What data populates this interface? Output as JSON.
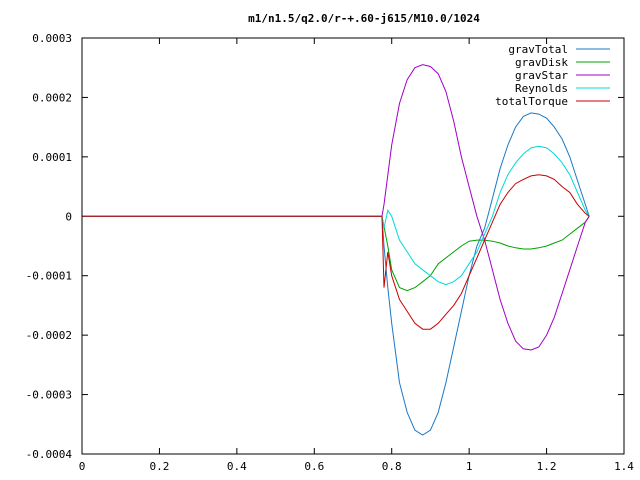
{
  "chart_data": {
    "type": "line",
    "title": "m1/n1.5/q2.0/r-+.60-j615/M10.0/1024",
    "xlabel": "",
    "ylabel": "",
    "xlim": [
      0,
      1.4
    ],
    "ylim": [
      -0.0004,
      0.0003
    ],
    "x_ticks": [
      "0",
      "0.2",
      "0.4",
      "0.6",
      "0.8",
      "1",
      "1.2",
      "1.4"
    ],
    "y_ticks": [
      "0.0003",
      "0.0002",
      "0.0001",
      "0",
      "-0.0001",
      "-0.0002",
      "-0.0003",
      "-0.0004"
    ],
    "legend_position": "top-right",
    "grid": false,
    "series": [
      {
        "name": "gravTotal",
        "color": "#1a78c8",
        "points": [
          [
            0,
            0
          ],
          [
            0.775,
            0
          ],
          [
            0.78,
            -5e-05
          ],
          [
            0.79,
            -0.00012
          ],
          [
            0.8,
            -0.00018
          ],
          [
            0.82,
            -0.00028
          ],
          [
            0.84,
            -0.00033
          ],
          [
            0.86,
            -0.00036
          ],
          [
            0.88,
            -0.000368
          ],
          [
            0.9,
            -0.00036
          ],
          [
            0.92,
            -0.00033
          ],
          [
            0.94,
            -0.00028
          ],
          [
            0.96,
            -0.00022
          ],
          [
            0.98,
            -0.00016
          ],
          [
            1.0,
            -0.0001
          ],
          [
            1.02,
            -5e-05
          ],
          [
            1.04,
            -2e-05
          ],
          [
            1.06,
            3e-05
          ],
          [
            1.08,
            8e-05
          ],
          [
            1.1,
            0.00012
          ],
          [
            1.12,
            0.00015
          ],
          [
            1.14,
            0.000168
          ],
          [
            1.16,
            0.000174
          ],
          [
            1.18,
            0.000172
          ],
          [
            1.2,
            0.000165
          ],
          [
            1.22,
            0.00015
          ],
          [
            1.24,
            0.00013
          ],
          [
            1.26,
            0.0001
          ],
          [
            1.28,
            6e-05
          ],
          [
            1.3,
            2e-05
          ],
          [
            1.31,
            0
          ]
        ]
      },
      {
        "name": "gravDisk",
        "color": "#00a000",
        "points": [
          [
            0,
            0
          ],
          [
            0.775,
            0
          ],
          [
            0.79,
            -5e-05
          ],
          [
            0.8,
            -9e-05
          ],
          [
            0.82,
            -0.00012
          ],
          [
            0.84,
            -0.000125
          ],
          [
            0.86,
            -0.00012
          ],
          [
            0.88,
            -0.00011
          ],
          [
            0.9,
            -0.0001
          ],
          [
            0.92,
            -8e-05
          ],
          [
            0.94,
            -7e-05
          ],
          [
            0.96,
            -6e-05
          ],
          [
            0.98,
            -5e-05
          ],
          [
            1.0,
            -4.2e-05
          ],
          [
            1.02,
            -4e-05
          ],
          [
            1.04,
            -4e-05
          ],
          [
            1.06,
            -4.2e-05
          ],
          [
            1.08,
            -4.5e-05
          ],
          [
            1.1,
            -5e-05
          ],
          [
            1.12,
            -5.3e-05
          ],
          [
            1.14,
            -5.5e-05
          ],
          [
            1.16,
            -5.5e-05
          ],
          [
            1.18,
            -5.3e-05
          ],
          [
            1.2,
            -5e-05
          ],
          [
            1.22,
            -4.5e-05
          ],
          [
            1.24,
            -4e-05
          ],
          [
            1.26,
            -3e-05
          ],
          [
            1.28,
            -2e-05
          ],
          [
            1.3,
            -1e-05
          ],
          [
            1.31,
            0
          ]
        ]
      },
      {
        "name": "gravStar",
        "color": "#a000c8",
        "points": [
          [
            0,
            0
          ],
          [
            0.775,
            0
          ],
          [
            0.78,
            2e-05
          ],
          [
            0.8,
            0.00012
          ],
          [
            0.82,
            0.00019
          ],
          [
            0.84,
            0.00023
          ],
          [
            0.86,
            0.00025
          ],
          [
            0.88,
            0.000255
          ],
          [
            0.9,
            0.000252
          ],
          [
            0.92,
            0.00024
          ],
          [
            0.94,
            0.00021
          ],
          [
            0.96,
            0.00016
          ],
          [
            0.98,
            0.0001
          ],
          [
            1.0,
            5e-05
          ],
          [
            1.02,
            0
          ],
          [
            1.04,
            -4e-05
          ],
          [
            1.06,
            -9e-05
          ],
          [
            1.08,
            -0.00014
          ],
          [
            1.1,
            -0.00018
          ],
          [
            1.12,
            -0.00021
          ],
          [
            1.14,
            -0.000223
          ],
          [
            1.16,
            -0.000225
          ],
          [
            1.18,
            -0.00022
          ],
          [
            1.2,
            -0.0002
          ],
          [
            1.22,
            -0.00017
          ],
          [
            1.24,
            -0.00013
          ],
          [
            1.26,
            -9e-05
          ],
          [
            1.28,
            -5e-05
          ],
          [
            1.3,
            -1e-05
          ],
          [
            1.31,
            0
          ]
        ]
      },
      {
        "name": "Reynolds",
        "color": "#00d8d8",
        "points": [
          [
            0,
            0
          ],
          [
            0.775,
            0
          ],
          [
            0.78,
            -2e-05
          ],
          [
            0.79,
            1e-05
          ],
          [
            0.8,
            0
          ],
          [
            0.81,
            -2e-05
          ],
          [
            0.82,
            -4e-05
          ],
          [
            0.84,
            -6e-05
          ],
          [
            0.86,
            -8e-05
          ],
          [
            0.88,
            -9e-05
          ],
          [
            0.9,
            -0.0001
          ],
          [
            0.92,
            -0.00011
          ],
          [
            0.94,
            -0.000115
          ],
          [
            0.96,
            -0.00011
          ],
          [
            0.98,
            -0.0001
          ],
          [
            1.0,
            -8e-05
          ],
          [
            1.02,
            -6e-05
          ],
          [
            1.04,
            -3e-05
          ],
          [
            1.06,
            0
          ],
          [
            1.08,
            4e-05
          ],
          [
            1.1,
            7e-05
          ],
          [
            1.12,
            9e-05
          ],
          [
            1.14,
            0.000105
          ],
          [
            1.16,
            0.000115
          ],
          [
            1.18,
            0.000118
          ],
          [
            1.2,
            0.000115
          ],
          [
            1.22,
            0.000105
          ],
          [
            1.24,
            9e-05
          ],
          [
            1.26,
            7e-05
          ],
          [
            1.28,
            4e-05
          ],
          [
            1.3,
            1e-05
          ],
          [
            1.31,
            0
          ]
        ]
      },
      {
        "name": "totalTorque",
        "color": "#c80000",
        "points": [
          [
            0,
            0
          ],
          [
            0.775,
            0
          ],
          [
            0.78,
            -0.00012
          ],
          [
            0.79,
            -6e-05
          ],
          [
            0.8,
            -0.0001
          ],
          [
            0.82,
            -0.00014
          ],
          [
            0.84,
            -0.00016
          ],
          [
            0.86,
            -0.00018
          ],
          [
            0.88,
            -0.00019
          ],
          [
            0.9,
            -0.00019
          ],
          [
            0.92,
            -0.00018
          ],
          [
            0.94,
            -0.000165
          ],
          [
            0.96,
            -0.00015
          ],
          [
            0.98,
            -0.00013
          ],
          [
            1.0,
            -0.0001
          ],
          [
            1.02,
            -7e-05
          ],
          [
            1.04,
            -4e-05
          ],
          [
            1.06,
            -1e-05
          ],
          [
            1.08,
            2e-05
          ],
          [
            1.1,
            4e-05
          ],
          [
            1.12,
            5.5e-05
          ],
          [
            1.14,
            6.2e-05
          ],
          [
            1.16,
            6.8e-05
          ],
          [
            1.18,
            7e-05
          ],
          [
            1.2,
            6.8e-05
          ],
          [
            1.22,
            6.2e-05
          ],
          [
            1.24,
            5e-05
          ],
          [
            1.26,
            4e-05
          ],
          [
            1.28,
            2e-05
          ],
          [
            1.3,
            5e-06
          ],
          [
            1.31,
            0
          ]
        ]
      }
    ]
  }
}
